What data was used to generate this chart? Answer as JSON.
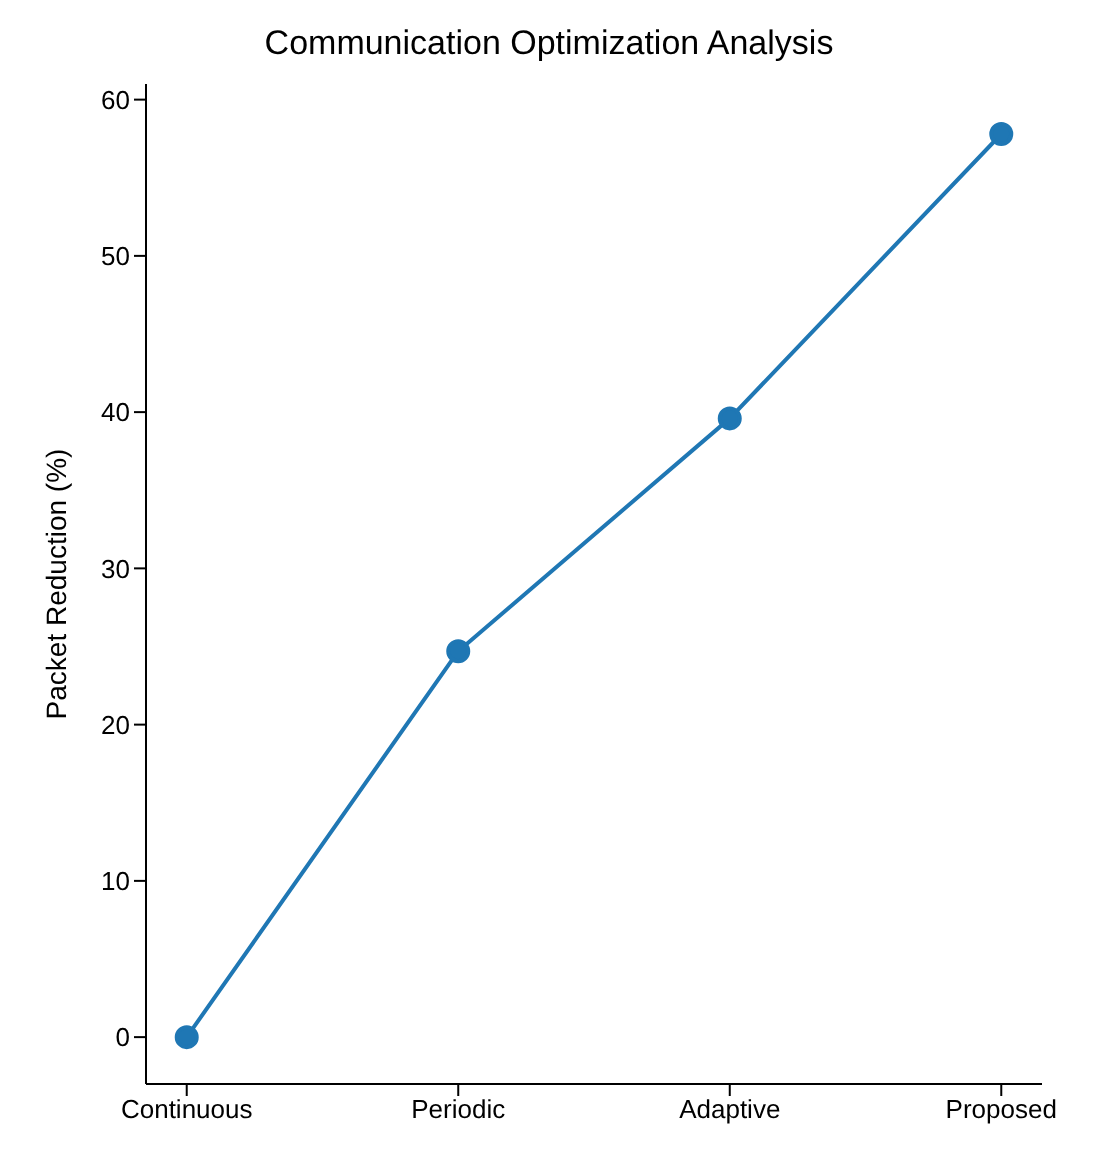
{
  "chart_data": {
    "type": "line",
    "title": "Communication Optimization Analysis",
    "ylabel": "Packet Reduction (%)",
    "categories": [
      "Continuous",
      "Periodic",
      "Adaptive",
      "Proposed"
    ],
    "series": [
      {
        "color": "#1f77b4",
        "values": [
          0,
          24.7,
          39.6,
          57.8
        ]
      }
    ],
    "ylim": [
      -3,
      61
    ],
    "yticks": [
      0,
      10,
      20,
      30,
      40,
      50,
      60
    ],
    "grid": false,
    "legend": false,
    "marker": "circle",
    "line_style": "solid"
  }
}
